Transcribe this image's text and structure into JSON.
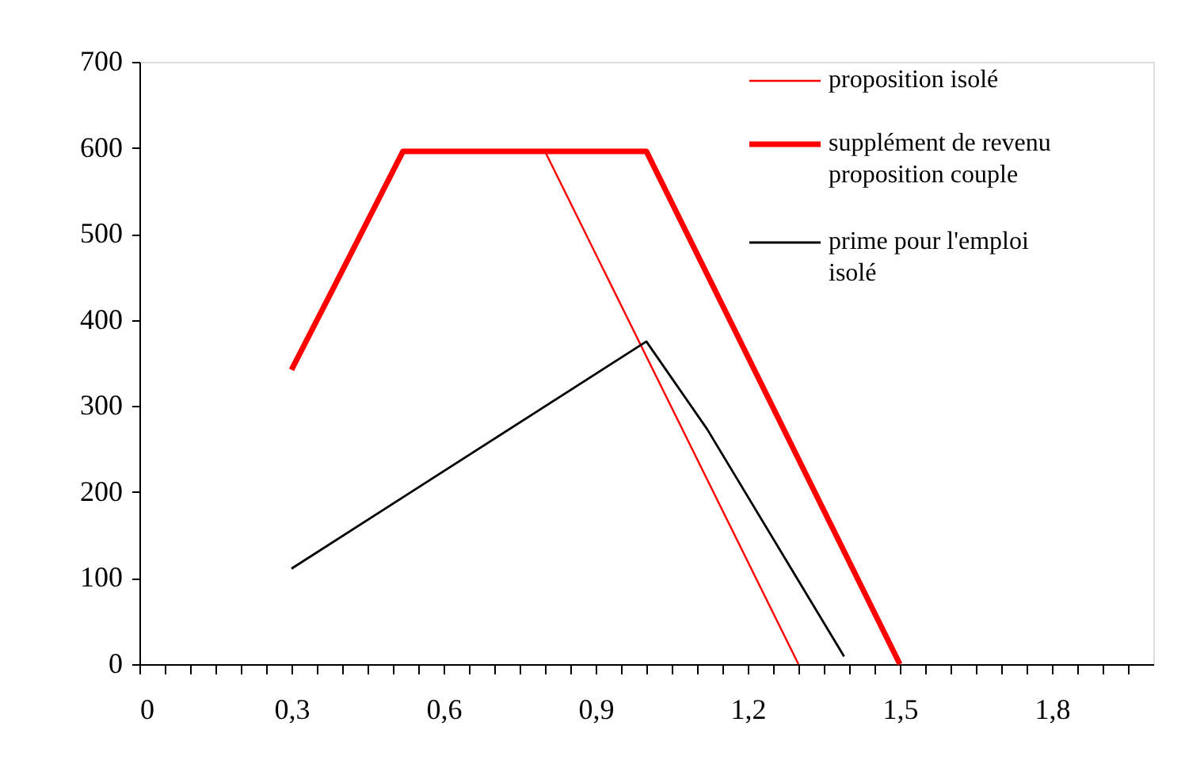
{
  "chart_data": {
    "type": "line",
    "series": [
      {
        "name": "proposition isolé",
        "color": "#ff0000",
        "x": [
          0.8,
          1.3
        ],
        "values": [
          596,
          0
        ]
      },
      {
        "name": "supplément de revenu proposition couple",
        "color": "#ff0000",
        "x": [
          0.3,
          0.38,
          0.52,
          1.0,
          1.5
        ],
        "values": [
          342,
          434,
          596,
          596,
          0
        ]
      },
      {
        "name": "prime pour l'emploi isolé",
        "color": "#000000",
        "x": [
          0.3,
          1.0,
          1.12,
          1.39
        ],
        "values": [
          111,
          375,
          273,
          9
        ]
      }
    ],
    "xlim": [
      0,
      2.0
    ],
    "ylim": [
      0,
      700
    ],
    "xticks": [
      0,
      {
        "value": 0.05,
        "label": null
      },
      {
        "value": 0.1,
        "label": null
      },
      {
        "value": 0.15,
        "label": null
      },
      {
        "value": 0.2,
        "label": null
      },
      {
        "value": 0.25,
        "label": null
      },
      {
        "value": 0.3,
        "label": "0,3"
      },
      {
        "value": 0.35,
        "label": null
      },
      {
        "value": 0.4,
        "label": null
      },
      {
        "value": 0.45,
        "label": null
      },
      {
        "value": 0.5,
        "label": null
      },
      {
        "value": 0.55,
        "label": null
      },
      {
        "value": 0.6,
        "label": "0,6"
      },
      {
        "value": 0.65,
        "label": null
      },
      {
        "value": 0.7,
        "label": null
      },
      {
        "value": 0.75,
        "label": null
      },
      {
        "value": 0.8,
        "label": null
      },
      {
        "value": 0.85,
        "label": null
      },
      {
        "value": 0.9,
        "label": "0,9"
      },
      {
        "value": 0.95,
        "label": null
      },
      {
        "value": 1.0,
        "label": null
      },
      {
        "value": 1.05,
        "label": null
      },
      {
        "value": 1.1,
        "label": null
      },
      {
        "value": 1.15,
        "label": null
      },
      {
        "value": 1.2,
        "label": "1,2"
      },
      {
        "value": 1.25,
        "label": null
      },
      {
        "value": 1.3,
        "label": null
      },
      {
        "value": 1.35,
        "label": null
      },
      {
        "value": 1.4,
        "label": null
      },
      {
        "value": 1.45,
        "label": null
      },
      {
        "value": 1.5,
        "label": "1,5"
      },
      {
        "value": 1.55,
        "label": null
      },
      {
        "value": 1.6,
        "label": null
      },
      {
        "value": 1.65,
        "label": null
      },
      {
        "value": 1.7,
        "label": null
      },
      {
        "value": 1.75,
        "label": null
      },
      {
        "value": 1.8,
        "label": "1,8"
      },
      {
        "value": 1.85,
        "label": null
      },
      {
        "value": 1.9,
        "label": null
      },
      {
        "value": 1.95,
        "label": null
      }
    ],
    "yticks": [
      0,
      100,
      200,
      300,
      400,
      500,
      600,
      700
    ],
    "grid": false,
    "legend": "top right",
    "marker": "none",
    "line_style": "solid"
  }
}
